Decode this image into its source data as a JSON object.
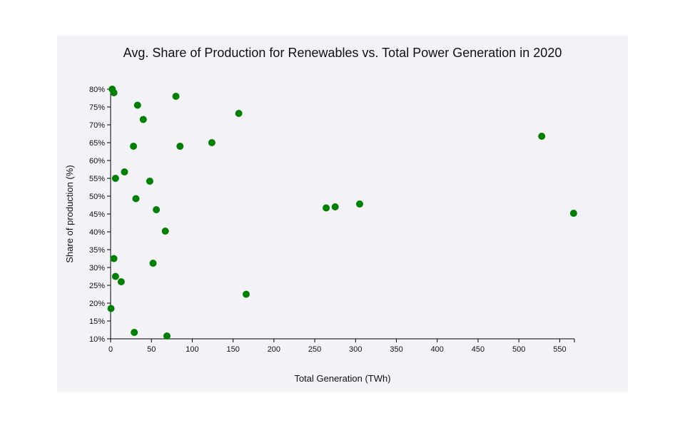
{
  "chart_data": {
    "type": "scatter",
    "title": "Avg. Share of Production for Renewables vs. Total Power Generation in 2020",
    "xlabel": "Total Generation (TWh)",
    "ylabel": "Share of production (%)",
    "xlim": [
      0,
      568
    ],
    "ylim": [
      10,
      80
    ],
    "xticks": [
      0,
      50,
      100,
      150,
      200,
      250,
      300,
      350,
      400,
      450,
      500,
      550
    ],
    "yticks": [
      10,
      15,
      20,
      25,
      30,
      35,
      40,
      45,
      50,
      55,
      60,
      65,
      70,
      75,
      80
    ],
    "ytick_suffix": "%",
    "grid": false,
    "marker_color": "#008000",
    "points": [
      {
        "x": 2,
        "y": 80
      },
      {
        "x": 4,
        "y": 79
      },
      {
        "x": 80,
        "y": 78
      },
      {
        "x": 33,
        "y": 75.5
      },
      {
        "x": 157,
        "y": 73.2
      },
      {
        "x": 40,
        "y": 71.5
      },
      {
        "x": 528,
        "y": 66.8
      },
      {
        "x": 124,
        "y": 65
      },
      {
        "x": 28,
        "y": 64
      },
      {
        "x": 85,
        "y": 64
      },
      {
        "x": 17,
        "y": 56.8
      },
      {
        "x": 6,
        "y": 55
      },
      {
        "x": 48,
        "y": 54.2
      },
      {
        "x": 31,
        "y": 49.3
      },
      {
        "x": 305,
        "y": 47.8
      },
      {
        "x": 275,
        "y": 47
      },
      {
        "x": 264,
        "y": 46.7
      },
      {
        "x": 56,
        "y": 46.2
      },
      {
        "x": 567,
        "y": 45.2
      },
      {
        "x": 67,
        "y": 40.2
      },
      {
        "x": 4,
        "y": 32.5
      },
      {
        "x": 52,
        "y": 31.2
      },
      {
        "x": 6,
        "y": 27.5
      },
      {
        "x": 13,
        "y": 26
      },
      {
        "x": 166,
        "y": 22.5
      },
      {
        "x": 0.5,
        "y": 18.5
      },
      {
        "x": 29,
        "y": 11.8
      },
      {
        "x": 69,
        "y": 10.8
      }
    ]
  }
}
